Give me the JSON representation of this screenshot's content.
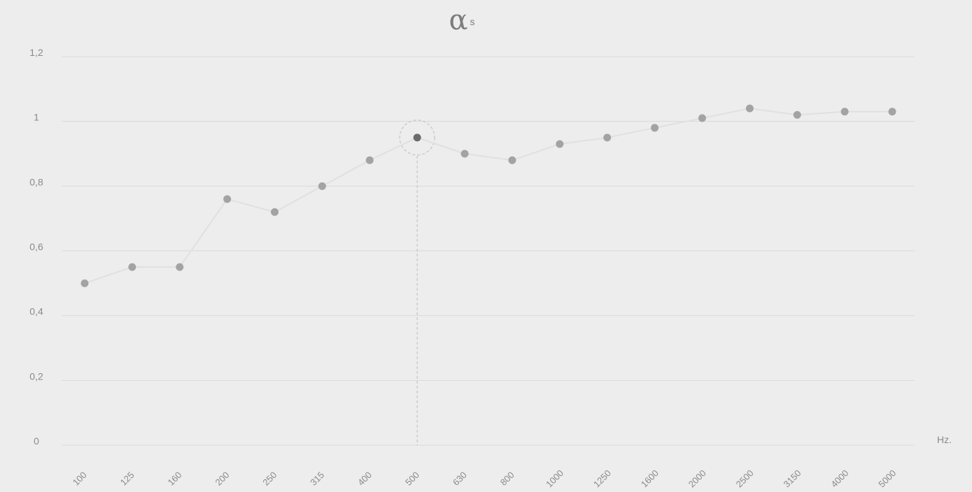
{
  "chart_data": {
    "type": "line",
    "title_symbol": "α",
    "title_subscript": "s",
    "xlabel": "",
    "unit_label": "Hz.",
    "ylabel": "",
    "ylim": [
      0,
      1.2
    ],
    "y_ticks": [
      "0",
      "0,2",
      "0,4",
      "0,6",
      "0,8",
      "1",
      "1,2"
    ],
    "y_tick_values": [
      0,
      0.2,
      0.4,
      0.6,
      0.8,
      1.0,
      1.2
    ],
    "categories": [
      "100",
      "125",
      "160",
      "200",
      "250",
      "315",
      "400",
      "500",
      "630",
      "800",
      "1000",
      "1250",
      "1600",
      "2000",
      "2500",
      "3150",
      "4000",
      "5000"
    ],
    "series": [
      {
        "values": [
          0.5,
          0.55,
          0.55,
          0.76,
          0.72,
          0.8,
          0.88,
          0.95,
          0.9,
          0.88,
          0.93,
          0.95,
          0.98,
          1.01,
          1.04,
          1.02,
          1.03,
          1.03
        ]
      }
    ],
    "highlighted_category": "500",
    "grid": true,
    "colors": {
      "background": "#ededed",
      "grid": "#d9d9d9",
      "line": "#e0e0e0",
      "point": "#a3a3a3",
      "highlight_point": "#6b6b6b",
      "highlight_ring": "#c4c4c4",
      "label": "#8a8a8a"
    }
  }
}
